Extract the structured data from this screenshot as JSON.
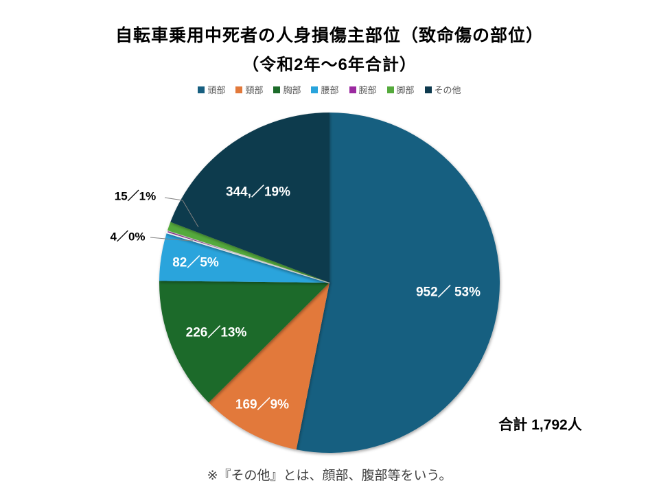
{
  "title": {
    "line1": "自転車乗用中死者の人身損傷主部位（致命傷の部位）",
    "line2": "（令和2年～6年合計）"
  },
  "chart_data": {
    "type": "pie",
    "title": "自転車乗用中死者の人身損傷主部位（致命傷の部位）",
    "subtitle": "（令和2年～6年合計）",
    "total": 1792,
    "unit": "人",
    "legend_position": "top",
    "start_angle": 0,
    "direction": "clockwise",
    "slices": [
      {
        "name": "頭部",
        "value": 952,
        "percent": 53,
        "label": "952／ 53%",
        "color": "#175F80"
      },
      {
        "name": "頸部",
        "value": 169,
        "percent": 9,
        "label": "169／9%",
        "color": "#E2793B"
      },
      {
        "name": "胸部",
        "value": 226,
        "percent": 13,
        "label": "226／13%",
        "color": "#1C6B2A"
      },
      {
        "name": "腰部",
        "value": 82,
        "percent": 5,
        "label": "82／5%",
        "color": "#29A4DC"
      },
      {
        "name": "腕部",
        "value": 4,
        "percent": 0,
        "label": "4／0%",
        "color": "#9C2AA0"
      },
      {
        "name": "脚部",
        "value": 15,
        "percent": 1,
        "label": "15／1%",
        "color": "#55AA3C"
      },
      {
        "name": "その他",
        "value": 344,
        "percent": 19,
        "label": "344,／19%",
        "color": "#0E3A4E"
      }
    ]
  },
  "total_label": "合計 1,792人",
  "footnote": "※『その他』とは、顔部、腹部等をいう。"
}
